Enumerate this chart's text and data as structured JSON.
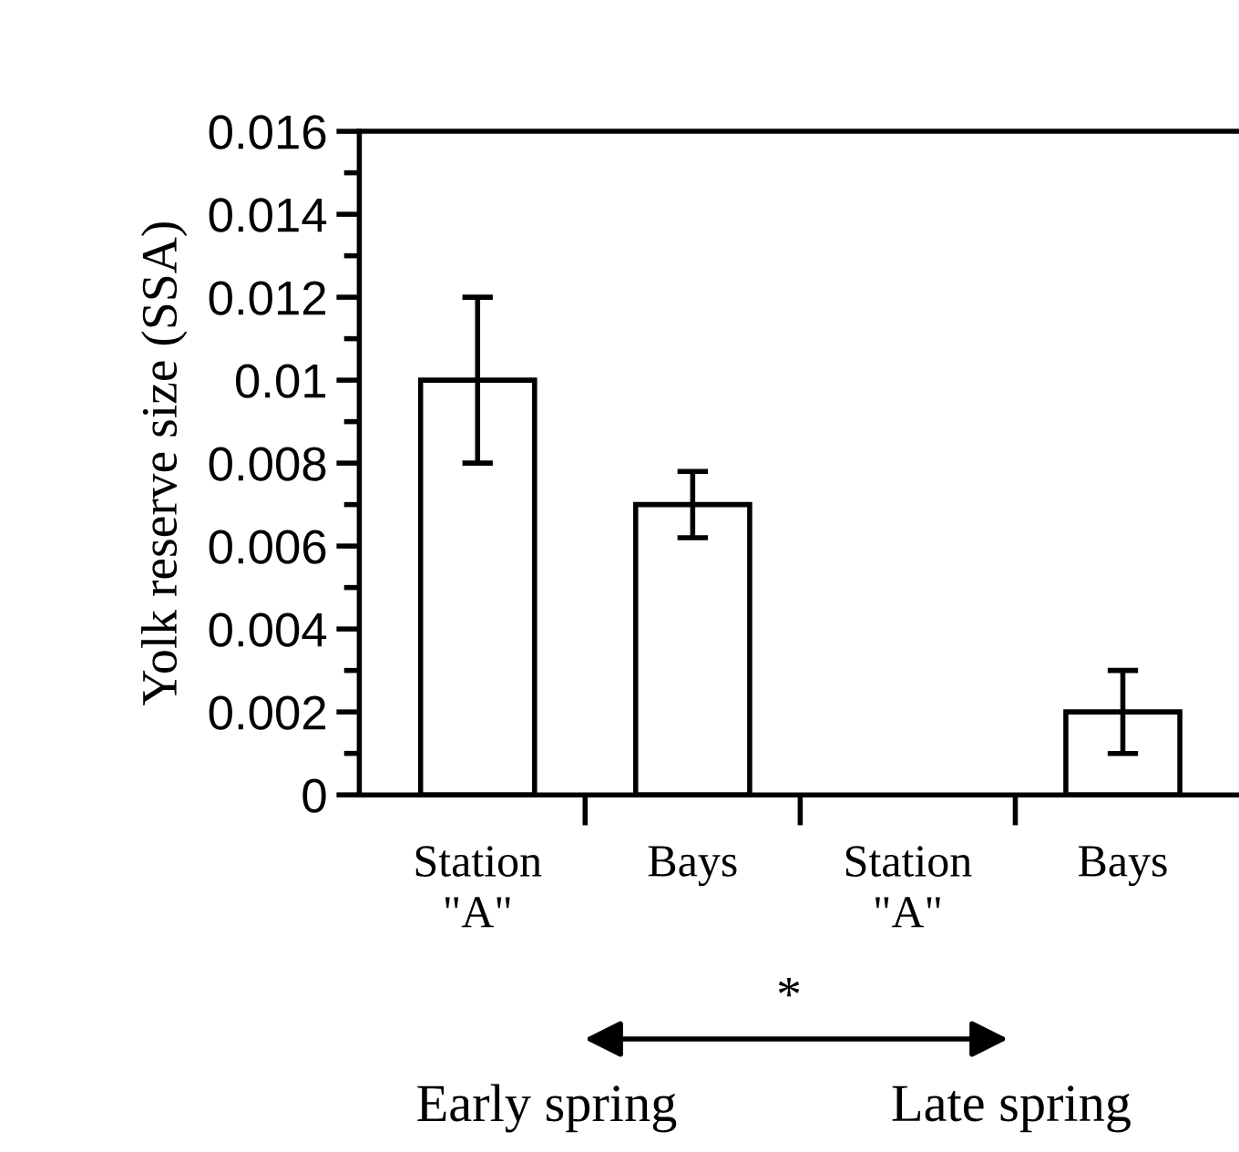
{
  "chart_data": {
    "type": "bar",
    "ylabel": "Yolk reserve size (SSA)",
    "categories": [
      "Station\n\"A\"",
      "Bays",
      "Station\n\"A\"",
      "Bays"
    ],
    "values": [
      0.01,
      0.007,
      null,
      0.002
    ],
    "errors": [
      [
        0.008,
        0.012
      ],
      [
        0.0062,
        0.0078
      ],
      null,
      [
        0.001,
        0.003
      ]
    ],
    "color": "#ffffff",
    "ylim": [
      0,
      0.016
    ],
    "yticks": [
      0,
      0.002,
      0.004,
      0.006,
      0.008,
      0.01,
      0.012,
      0.014,
      0.016
    ],
    "grid": false,
    "legend": false,
    "annotations": [
      "*",
      "Early spring",
      "Late spring"
    ]
  }
}
